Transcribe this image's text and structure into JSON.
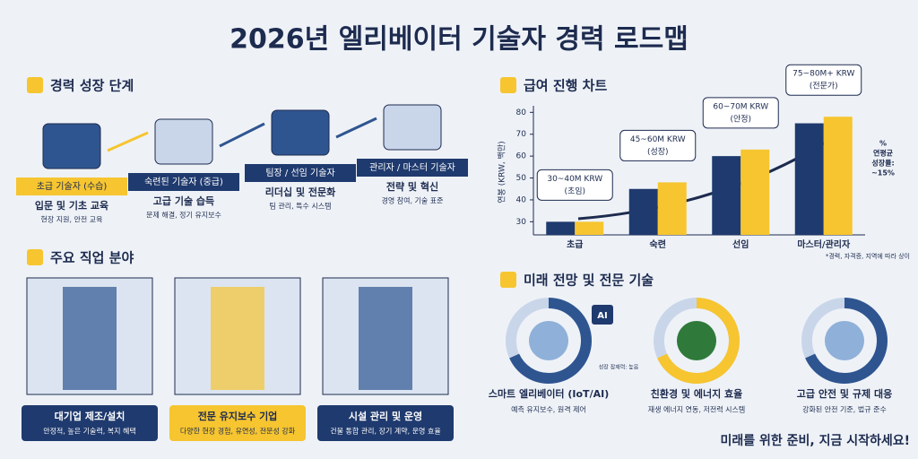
{
  "title": "2026년 엘리베이터 기술자 경력 로드맵",
  "career": {
    "title": "경력 성장 단계",
    "stages": [
      {
        "label": "초급 기술자 (수습)",
        "heading": "입문 및 기초 교육",
        "detail": "현장 지원, 안전 교육"
      },
      {
        "label": "숙련된 기술자 (중급)",
        "heading": "고급 기술 습득",
        "detail": "문제 해결, 정기 유지보수"
      },
      {
        "label": "팀장 / 선임 기술자",
        "heading": "리더십 및 전문화",
        "detail": "팀 관리, 특수 시스템"
      },
      {
        "label": "관리자 / 마스터 기술자",
        "heading": "전략 및 혁신",
        "detail": "경영 참여, 기술 표준"
      }
    ]
  },
  "jobs": {
    "title": "주요 직업 분야",
    "items": [
      {
        "label": "대기업 제조/설치",
        "detail": "안정적, 높은 기술력, 복지 혜택"
      },
      {
        "label": "전문 유지보수 기업",
        "detail": "다양한 현장 경험, 유연성, 전문성 강화"
      },
      {
        "label": "시설 관리 및 운영",
        "detail": "건물 통합 관리, 장기 계약, 운영 효율"
      }
    ]
  },
  "chart_data": {
    "type": "bar",
    "title": "급여 진행 차트",
    "y_label": "연봉 (KRW, 백만)",
    "categories": [
      "초급",
      "숙련",
      "선임",
      "마스터/관리자"
    ],
    "series": [
      {
        "color": "#1f3a6e",
        "values": [
          30,
          45,
          60,
          75
        ]
      },
      {
        "color": "#f6c530",
        "values": [
          30,
          48,
          63,
          78
        ]
      }
    ],
    "ylim": [
      24,
      83
    ],
    "yticks": [
      30,
      40,
      50,
      60,
      70,
      80
    ],
    "grid": false,
    "callouts": [
      [
        "30~40M KRW",
        "(초임)"
      ],
      [
        "45~60M KRW",
        "(성장)"
      ],
      [
        "60~70M KRW",
        "(안정)"
      ],
      [
        "75~80M+ KRW",
        "(전문가)"
      ]
    ],
    "growth": [
      "%",
      "연평균",
      "성장률:",
      "~15%"
    ],
    "note": "*경력, 자격증, 지역에 따라 상이"
  },
  "future": {
    "title": "미래 전망 및 전문 기술",
    "potential": "성장 잠재력: 높음",
    "ai": "AI",
    "items": [
      {
        "label": "스마트 엘리베이터 (IoT/AI)",
        "detail": "예측 유지보수, 원격 제어"
      },
      {
        "label": "친환경 및 에너지 효율",
        "detail": "재생 에너지 연동, 저전력 시스템"
      },
      {
        "label": "고급 안전 및 규제 대응",
        "detail": "강화된 안전 기준, 법규 준수"
      }
    ]
  },
  "closing": "미래를 위한 준비, 지금 시작하세요!"
}
